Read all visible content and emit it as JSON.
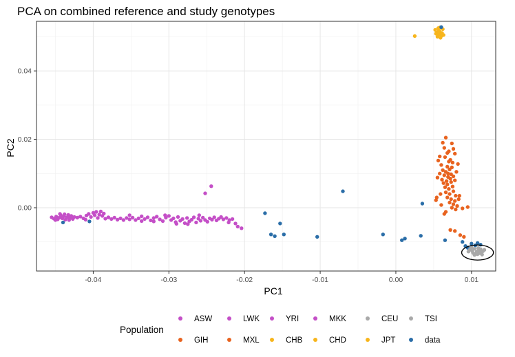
{
  "chart_data": {
    "type": "scatter",
    "title": "PCA on combined reference and study genotypes",
    "xlabel": "PC1",
    "ylabel": "PC2",
    "xlim": [
      -0.0475,
      0.0132
    ],
    "ylim": [
      -0.0185,
      0.0545
    ],
    "x_ticks": [
      -0.04,
      -0.03,
      -0.02,
      -0.01,
      0.0,
      0.01
    ],
    "x_tick_labels": [
      "-0.04",
      "-0.03",
      "-0.02",
      "-0.01",
      "0.00",
      "0.01"
    ],
    "y_ticks": [
      0.0,
      0.02,
      0.04
    ],
    "y_tick_labels": [
      "0.00",
      "0.02",
      "0.04"
    ],
    "grid": true,
    "legend": {
      "title": "Population",
      "position": "bottom",
      "items": [
        {
          "label": "ASW",
          "color": "#c44fc7"
        },
        {
          "label": "LWK",
          "color": "#c44fc7"
        },
        {
          "label": "YRI",
          "color": "#c44fc7"
        },
        {
          "label": "MKK",
          "color": "#c44fc7"
        },
        {
          "label": "CEU",
          "color": "#a9a9a9"
        },
        {
          "label": "TSI",
          "color": "#a9a9a9"
        },
        {
          "label": "GIH",
          "color": "#e8631f"
        },
        {
          "label": "MXL",
          "color": "#e8631f"
        },
        {
          "label": "CHB",
          "color": "#f7b51c"
        },
        {
          "label": "CHD",
          "color": "#f7b51c"
        },
        {
          "label": "JPT",
          "color": "#f7b51c"
        },
        {
          "label": "data",
          "color": "#2b6ea8"
        }
      ]
    },
    "annotations": [
      {
        "shape": "ellipse",
        "center": [
          0.0108,
          -0.0131
        ],
        "radius_x": 0.0021,
        "radius_y": 0.0022
      }
    ],
    "series": [
      {
        "color": "#c44fc7",
        "points": [
          [
            -0.0455,
            -0.0028
          ],
          [
            -0.0452,
            -0.0032
          ],
          [
            -0.0449,
            -0.0026
          ],
          [
            -0.0447,
            -0.0034
          ],
          [
            -0.0445,
            -0.0029
          ],
          [
            -0.0443,
            -0.0022
          ],
          [
            -0.0441,
            -0.0031
          ],
          [
            -0.0439,
            -0.0025
          ],
          [
            -0.0437,
            -0.0035
          ],
          [
            -0.0435,
            -0.0028
          ],
          [
            -0.0433,
            -0.0021
          ],
          [
            -0.0431,
            -0.003
          ],
          [
            -0.0429,
            -0.0024
          ],
          [
            -0.0427,
            -0.0033
          ],
          [
            -0.0425,
            -0.0027
          ],
          [
            -0.045,
            -0.0036
          ],
          [
            -0.0444,
            -0.0018
          ],
          [
            -0.0438,
            -0.0019
          ],
          [
            -0.0432,
            -0.0036
          ],
          [
            -0.0421,
            -0.0029
          ],
          [
            -0.0417,
            -0.0026
          ],
          [
            -0.0413,
            -0.0031
          ],
          [
            -0.0409,
            -0.0023
          ],
          [
            -0.0406,
            -0.0018
          ],
          [
            -0.0403,
            -0.0027
          ],
          [
            -0.04,
            -0.0015
          ],
          [
            -0.0398,
            -0.0022
          ],
          [
            -0.0396,
            -0.0012
          ],
          [
            -0.0394,
            -0.003
          ],
          [
            -0.0392,
            -0.002
          ],
          [
            -0.039,
            -0.0011
          ],
          [
            -0.0388,
            -0.0024
          ],
          [
            -0.0386,
            -0.0017
          ],
          [
            -0.0384,
            -0.0032
          ],
          [
            -0.038,
            -0.0028
          ],
          [
            -0.0376,
            -0.0033
          ],
          [
            -0.0372,
            -0.0029
          ],
          [
            -0.0368,
            -0.0035
          ],
          [
            -0.0364,
            -0.0031
          ],
          [
            -0.036,
            -0.0036
          ],
          [
            -0.0356,
            -0.003
          ],
          [
            -0.0352,
            -0.0034
          ],
          [
            -0.0348,
            -0.0029
          ],
          [
            -0.0344,
            -0.0036
          ],
          [
            -0.034,
            -0.0031
          ],
          [
            -0.0336,
            -0.0025
          ],
          [
            -0.0332,
            -0.0033
          ],
          [
            -0.0328,
            -0.0028
          ],
          [
            -0.0324,
            -0.0037
          ],
          [
            -0.032,
            -0.003
          ],
          [
            -0.0316,
            -0.0026
          ],
          [
            -0.0312,
            -0.0034
          ],
          [
            -0.0308,
            -0.0039
          ],
          [
            -0.0304,
            -0.0029
          ],
          [
            -0.03,
            -0.0024
          ],
          [
            -0.0297,
            -0.0036
          ],
          [
            -0.0294,
            -0.0031
          ],
          [
            -0.0291,
            -0.0042
          ],
          [
            -0.0288,
            -0.0027
          ],
          [
            -0.0285,
            -0.0038
          ],
          [
            -0.0282,
            -0.0033
          ],
          [
            -0.0279,
            -0.0045
          ],
          [
            -0.0276,
            -0.003
          ],
          [
            -0.0273,
            -0.004
          ],
          [
            -0.027,
            -0.0035
          ],
          [
            -0.0267,
            -0.0028
          ],
          [
            -0.0264,
            -0.0043
          ],
          [
            -0.0261,
            -0.0032
          ],
          [
            -0.0258,
            -0.0038
          ],
          [
            -0.0255,
            -0.0029
          ],
          [
            -0.0252,
            -0.0036
          ],
          [
            -0.0249,
            -0.0041
          ],
          [
            -0.0246,
            -0.0031
          ],
          [
            -0.0243,
            -0.0035
          ],
          [
            -0.024,
            -0.0028
          ],
          [
            -0.0237,
            -0.0037
          ],
          [
            -0.0234,
            -0.0032
          ],
          [
            -0.0231,
            -0.0027
          ],
          [
            -0.0228,
            -0.0034
          ],
          [
            -0.0224,
            -0.003
          ],
          [
            -0.022,
            -0.0036
          ],
          [
            -0.0216,
            -0.0033
          ],
          [
            -0.0212,
            -0.0046
          ],
          [
            -0.0209,
            -0.0055
          ],
          [
            -0.0204,
            -0.006
          ],
          [
            -0.0221,
            -0.0043
          ],
          [
            -0.026,
            -0.0022
          ],
          [
            -0.0244,
            0.0063
          ],
          [
            -0.0252,
            0.0042
          ],
          [
            -0.0275,
            -0.0048
          ],
          [
            -0.029,
            -0.0047
          ],
          [
            -0.0305,
            -0.0022
          ],
          [
            -0.032,
            -0.004
          ],
          [
            -0.0336,
            -0.0039
          ],
          [
            -0.0352,
            -0.0022
          ],
          [
            -0.041,
            -0.0035
          ]
        ]
      },
      {
        "color": "#e8631f",
        "points": [
          [
            0.0062,
            0.019
          ],
          [
            0.0066,
            0.0205
          ],
          [
            0.0064,
            0.0175
          ],
          [
            0.007,
            0.0165
          ],
          [
            0.0058,
            0.015
          ],
          [
            0.0065,
            0.0148
          ],
          [
            0.0072,
            0.014
          ],
          [
            0.0078,
            0.0158
          ],
          [
            0.0075,
            0.0132
          ],
          [
            0.0082,
            0.0128
          ],
          [
            0.0056,
            0.0138
          ],
          [
            0.006,
            0.0125
          ],
          [
            0.0068,
            0.012
          ],
          [
            0.0074,
            0.0118
          ],
          [
            0.0062,
            0.011
          ],
          [
            0.0066,
            0.0105
          ],
          [
            0.0071,
            0.0112
          ],
          [
            0.0058,
            0.01
          ],
          [
            0.0064,
            0.0095
          ],
          [
            0.0069,
            0.009
          ],
          [
            0.0073,
            0.0098
          ],
          [
            0.008,
            0.0105
          ],
          [
            0.0055,
            0.0088
          ],
          [
            0.0061,
            0.0082
          ],
          [
            0.0067,
            0.0078
          ],
          [
            0.0072,
            0.0085
          ],
          [
            0.0076,
            0.0092
          ],
          [
            0.0063,
            0.0072
          ],
          [
            0.0068,
            0.0068
          ],
          [
            0.0073,
            0.0075
          ],
          [
            0.0078,
            0.008
          ],
          [
            0.0065,
            0.006
          ],
          [
            0.007,
            0.0055
          ],
          [
            0.0075,
            0.0062
          ],
          [
            0.0066,
            0.0045
          ],
          [
            0.0071,
            0.004
          ],
          [
            0.0076,
            0.0048
          ],
          [
            0.0079,
            0.0035
          ],
          [
            0.0068,
            0.003
          ],
          [
            0.0073,
            0.0025
          ],
          [
            0.0078,
            0.002
          ],
          [
            0.0071,
            0.0015
          ],
          [
            0.0076,
            0.001
          ],
          [
            0.0081,
            0.0005
          ],
          [
            0.0074,
            0.0
          ],
          [
            0.0079,
            -0.0005
          ],
          [
            0.0066,
            -0.0012
          ],
          [
            0.006,
            0.0008
          ],
          [
            0.0054,
            0.003
          ],
          [
            0.0059,
            0.004
          ],
          [
            0.0084,
            0.0035
          ],
          [
            0.007,
            0.0135
          ],
          [
            0.0076,
            0.0172
          ],
          [
            0.0064,
            -0.0018
          ],
          [
            0.0083,
            0.0025
          ],
          [
            0.0069,
            0.01
          ],
          [
            0.0053,
            0.0022
          ],
          [
            0.0088,
            -0.0002
          ],
          [
            0.0095,
            0.0002
          ],
          [
            0.0072,
            -0.0065
          ],
          [
            0.0078,
            -0.0068
          ],
          [
            0.0085,
            -0.008
          ],
          [
            0.009,
            -0.0085
          ],
          [
            0.0068,
            0.016
          ],
          [
            0.0074,
            0.0188
          ]
        ]
      },
      {
        "color": "#f7b51c",
        "points": [
          [
            0.0025,
            0.0502
          ],
          [
            0.0052,
            0.052
          ],
          [
            0.0054,
            0.0512
          ],
          [
            0.0056,
            0.0506
          ],
          [
            0.0058,
            0.0515
          ],
          [
            0.006,
            0.0508
          ],
          [
            0.0062,
            0.0522
          ],
          [
            0.0055,
            0.05
          ],
          [
            0.0059,
            0.0497
          ],
          [
            0.0057,
            0.0518
          ],
          [
            0.0061,
            0.0511
          ],
          [
            0.0053,
            0.0509
          ],
          [
            0.0056,
            0.0525
          ],
          [
            0.006,
            0.0502
          ],
          [
            0.0058,
            0.0527
          ],
          [
            0.0063,
            0.0505
          ]
        ]
      },
      {
        "color": "#2b6ea8",
        "points": [
          [
            -0.007,
            0.0048
          ],
          [
            0.0035,
            0.0012
          ],
          [
            -0.044,
            -0.0043
          ],
          [
            -0.0405,
            -0.004
          ],
          [
            -0.0173,
            -0.0016
          ],
          [
            -0.0165,
            -0.0078
          ],
          [
            -0.016,
            -0.0083
          ],
          [
            -0.0153,
            -0.0046
          ],
          [
            -0.0148,
            -0.0078
          ],
          [
            -0.0104,
            -0.0085
          ],
          [
            -0.0017,
            -0.0078
          ],
          [
            0.0008,
            -0.0095
          ],
          [
            0.0012,
            -0.009
          ],
          [
            0.0033,
            -0.0082
          ],
          [
            0.0065,
            -0.0095
          ],
          [
            0.0088,
            -0.01
          ],
          [
            0.0092,
            -0.0112
          ],
          [
            0.01,
            -0.0105
          ],
          [
            0.0105,
            -0.011
          ],
          [
            0.0108,
            -0.0103
          ],
          [
            0.0112,
            -0.0108
          ],
          [
            0.0095,
            -0.0117
          ],
          [
            0.006,
            0.0528
          ]
        ]
      },
      {
        "color": "#a9a9a9",
        "points": [
          [
            0.0098,
            -0.0122
          ],
          [
            0.0101,
            -0.0126
          ],
          [
            0.0104,
            -0.012
          ],
          [
            0.0107,
            -0.0128
          ],
          [
            0.011,
            -0.0124
          ],
          [
            0.0113,
            -0.013
          ],
          [
            0.0102,
            -0.0132
          ],
          [
            0.0106,
            -0.0134
          ],
          [
            0.0109,
            -0.0118
          ],
          [
            0.0112,
            -0.0121
          ],
          [
            0.0115,
            -0.0127
          ],
          [
            0.01,
            -0.0116
          ],
          [
            0.0104,
            -0.0138
          ],
          [
            0.0108,
            -0.0136
          ],
          [
            0.0111,
            -0.0133
          ],
          [
            0.0117,
            -0.0123
          ],
          [
            0.0096,
            -0.0128
          ],
          [
            0.0114,
            -0.0137
          ]
        ]
      }
    ]
  }
}
